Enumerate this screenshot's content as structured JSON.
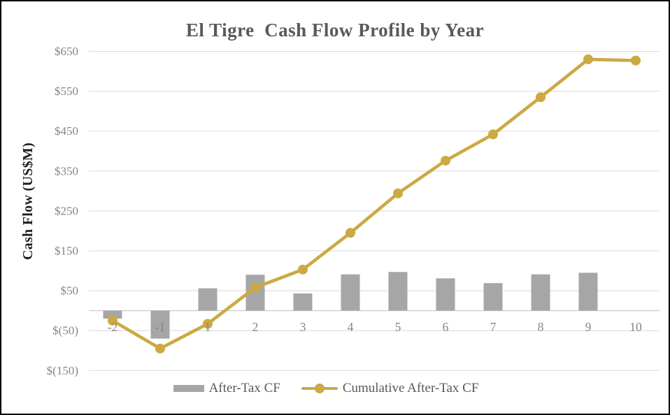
{
  "chart_data": {
    "type": "combo",
    "title": "El Tigre  Cash Flow Profile by Year",
    "ylabel": "Cash Flow (US$M)",
    "categories": [
      "-2",
      "-1",
      "1",
      "2",
      "3",
      "4",
      "5",
      "6",
      "7",
      "8",
      "9",
      "10"
    ],
    "series": [
      {
        "name": "After-Tax CF",
        "type": "bar",
        "color": "#a6a6a6",
        "values": [
          -20,
          -70,
          56,
          90,
          43,
          91,
          97,
          81,
          69,
          91,
          95,
          0
        ]
      },
      {
        "name": "Cumulative After-Tax CF",
        "type": "line",
        "color": "#cca942",
        "values": [
          -25,
          -95,
          -33,
          58,
          103,
          195,
          294,
          376,
          442,
          535,
          630,
          627
        ]
      }
    ],
    "y_axis": {
      "min": -150,
      "max": 650,
      "tick_step": 100,
      "ticks": [
        {
          "label": "$650",
          "value": 650
        },
        {
          "label": "$550",
          "value": 550
        },
        {
          "label": "$450",
          "value": 450
        },
        {
          "label": "$350",
          "value": 350
        },
        {
          "label": "$250",
          "value": 250
        },
        {
          "label": "$150",
          "value": 150
        },
        {
          "label": "$50",
          "value": 50
        },
        {
          "label": "$(50)",
          "value": -50
        },
        {
          "label": "$(150)",
          "value": -150
        }
      ]
    },
    "grid": true,
    "legend_position": "bottom"
  },
  "colors": {
    "background": "#ffffff",
    "frame_border": "#000000",
    "title_text": "#595959",
    "axis_tick_text": "#858585",
    "axis_title_text": "#1f1f1f",
    "gridline": "#d9d9d9",
    "zero_axis": "#c9c9c9",
    "bar_fill": "#a6a6a6",
    "line_stroke": "#cca942",
    "legend_text": "#595959"
  }
}
